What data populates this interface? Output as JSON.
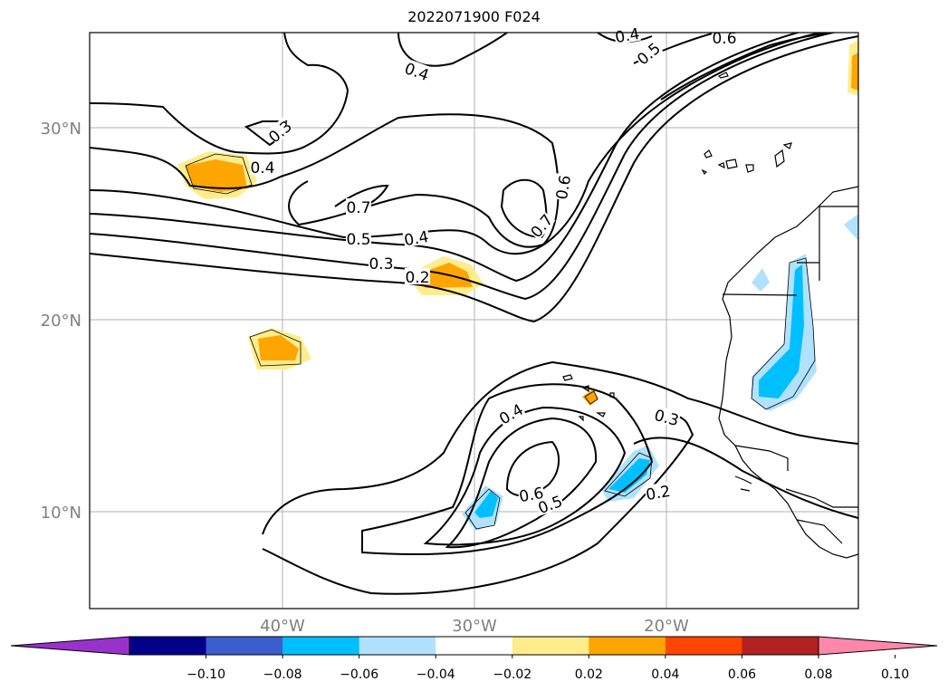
{
  "title": "2022071900 F024",
  "map": {
    "lat_ticks": [
      "30°N",
      "20°N",
      "10°N"
    ],
    "lon_ticks": [
      "40°W",
      "30°W",
      "20°W"
    ],
    "contour_labels": [
      "0.4",
      "0.5",
      "0.6",
      "0.4",
      "0.3",
      "0.4",
      "0.7",
      "0.6",
      "0.7",
      "0.5",
      "0.4",
      "0.3",
      "0.2",
      "0.4",
      "0.3",
      "0.6",
      "0.5",
      "0.2"
    ]
  },
  "colorbar": {
    "ticks": [
      "−0.10",
      "−0.08",
      "−0.06",
      "−0.04",
      "−0.02",
      "0.02",
      "0.04",
      "0.06",
      "0.08",
      "0.10"
    ],
    "colors": [
      "#9932cc",
      "#00008b",
      "#3a5fcd",
      "#00bfff",
      "#b0e2ff",
      "#ffffff",
      "#ffec8b",
      "#ffa500",
      "#ff4500",
      "#b22222",
      "#ff88aa"
    ]
  }
}
